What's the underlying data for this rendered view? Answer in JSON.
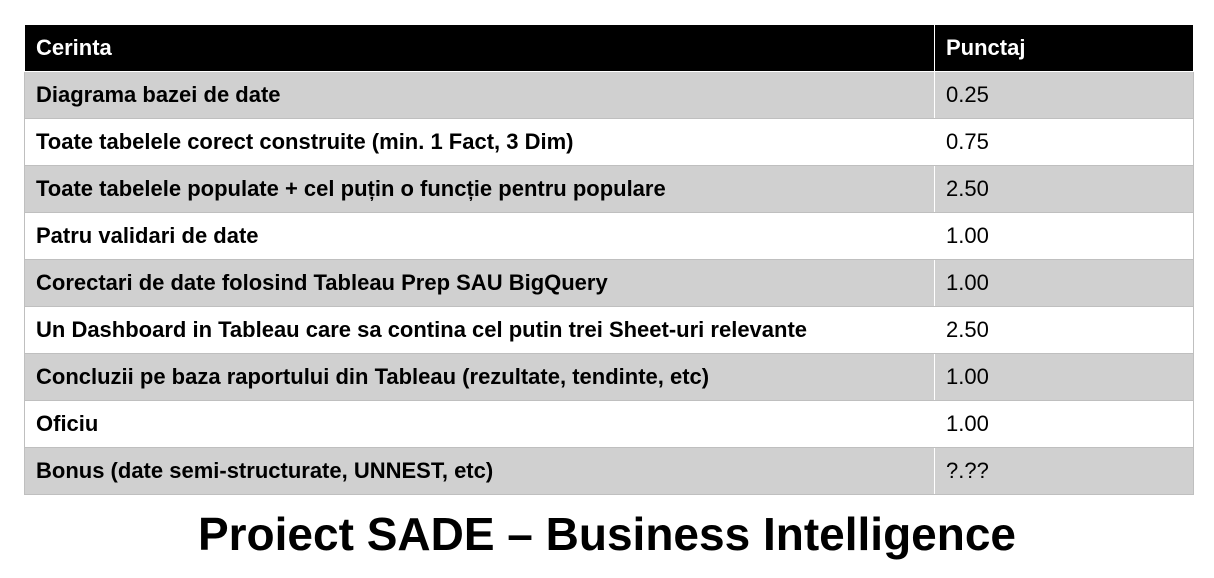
{
  "table": {
    "header": {
      "requirement": "Cerinta",
      "points": "Punctaj"
    },
    "rows": [
      {
        "requirement": "Diagrama bazei de date",
        "points": "0.25"
      },
      {
        "requirement": "Toate tabelele corect construite (min. 1 Fact, 3 Dim)",
        "points": "0.75"
      },
      {
        "requirement": "Toate tabelele populate + cel puțin o funcție pentru populare",
        "points": "2.50"
      },
      {
        "requirement": "Patru validari de date",
        "points": "1.00"
      },
      {
        "requirement": "Corectari de date folosind Tableau Prep SAU BigQuery",
        "points": "1.00"
      },
      {
        "requirement": "Un Dashboard in Tableau care sa contina cel putin trei Sheet-uri relevante",
        "points": "2.50"
      },
      {
        "requirement": "Concluzii pe baza raportului din Tableau (rezultate, tendinte, etc)",
        "points": "1.00"
      },
      {
        "requirement": "Oficiu",
        "points": "1.00"
      },
      {
        "requirement": "Bonus (date semi-structurate, UNNEST, etc)",
        "points": "?.??"
      }
    ]
  },
  "title": "Proiect SADE – Business Intelligence",
  "colors": {
    "header_bg": "#000000",
    "header_text": "#ffffff",
    "stripe_bg": "#d0d0d0",
    "row_bg": "#ffffff"
  }
}
